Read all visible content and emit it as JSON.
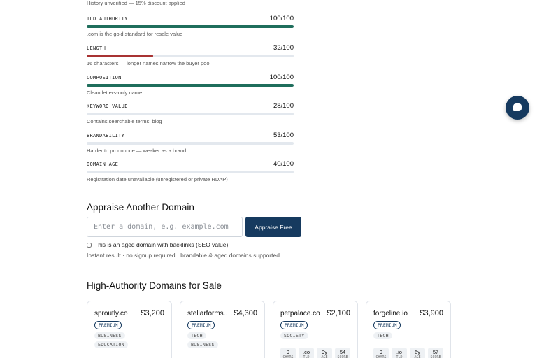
{
  "top_note": "History unverified — 15% discount applied",
  "metrics": [
    {
      "label": "TLD AUTHORITY",
      "score": "100/100",
      "value": 100,
      "color": "#1f6e5c",
      "note": ".com is the gold standard for resale value"
    },
    {
      "label": "LENGTH",
      "score": "32/100",
      "value": 32,
      "color": "#a83232",
      "note": "16 characters — longer names narrow the buyer pool"
    },
    {
      "label": "COMPOSITION",
      "score": "100/100",
      "value": 100,
      "color": "#1f6e5c",
      "note": "Clean letters-only name"
    },
    {
      "label": "KEYWORD VALUE",
      "score": "28/100",
      "value": 28,
      "color": "#e3e8ee",
      "note": "Contains searchable terms: blog"
    },
    {
      "label": "BRANDABILITY",
      "score": "53/100",
      "value": 53,
      "color": "#e3e8ee",
      "note": "Harder to pronounce — weaker as a brand"
    },
    {
      "label": "DOMAIN AGE",
      "score": "40/100",
      "value": 40,
      "color": "#e3e8ee",
      "note": "Registration date unavailable (unregistered or private RDAP)"
    }
  ],
  "appraise": {
    "title": "Appraise Another Domain",
    "placeholder": "Enter a domain, e.g. example.com",
    "button": "Appraise Free",
    "aged_checkbox": "This is an aged domain with backlinks (SEO value)",
    "note": "Instant result · no signup required · brandable & aged domains supported"
  },
  "sale": {
    "title": "High-Authority Domains for Sale",
    "cards": [
      {
        "name": "sproutly.co",
        "price": "$3,200",
        "badge": "PREMIUM",
        "tags": [
          "BUSINESS",
          "EDUCATION"
        ],
        "stats": []
      },
      {
        "name": "stellarforms.com",
        "price": "$4,300",
        "badge": "PREMIUM",
        "tags": [
          "TECH",
          "BUSINESS"
        ],
        "stats": []
      },
      {
        "name": "petpalace.co",
        "price": "$2,100",
        "badge": "PREMIUM",
        "tags": [
          "SOCIETY"
        ],
        "stats": [
          {
            "value": "9",
            "label": "CHARS"
          },
          {
            "value": ".co",
            "label": "TLD"
          },
          {
            "value": "9y",
            "label": "AGE"
          },
          {
            "value": "54",
            "label": "SCORE"
          }
        ]
      },
      {
        "name": "forgeline.io",
        "price": "$3,900",
        "badge": "PREMIUM",
        "tags": [
          "TECH"
        ],
        "stats": [
          {
            "value": "9",
            "label": "CHARS"
          },
          {
            "value": ".io",
            "label": "TLD"
          },
          {
            "value": "6y",
            "label": "AGE"
          },
          {
            "value": "57",
            "label": "SCORE"
          }
        ]
      }
    ]
  },
  "chat": {
    "icon": "chat-bubble-icon"
  }
}
